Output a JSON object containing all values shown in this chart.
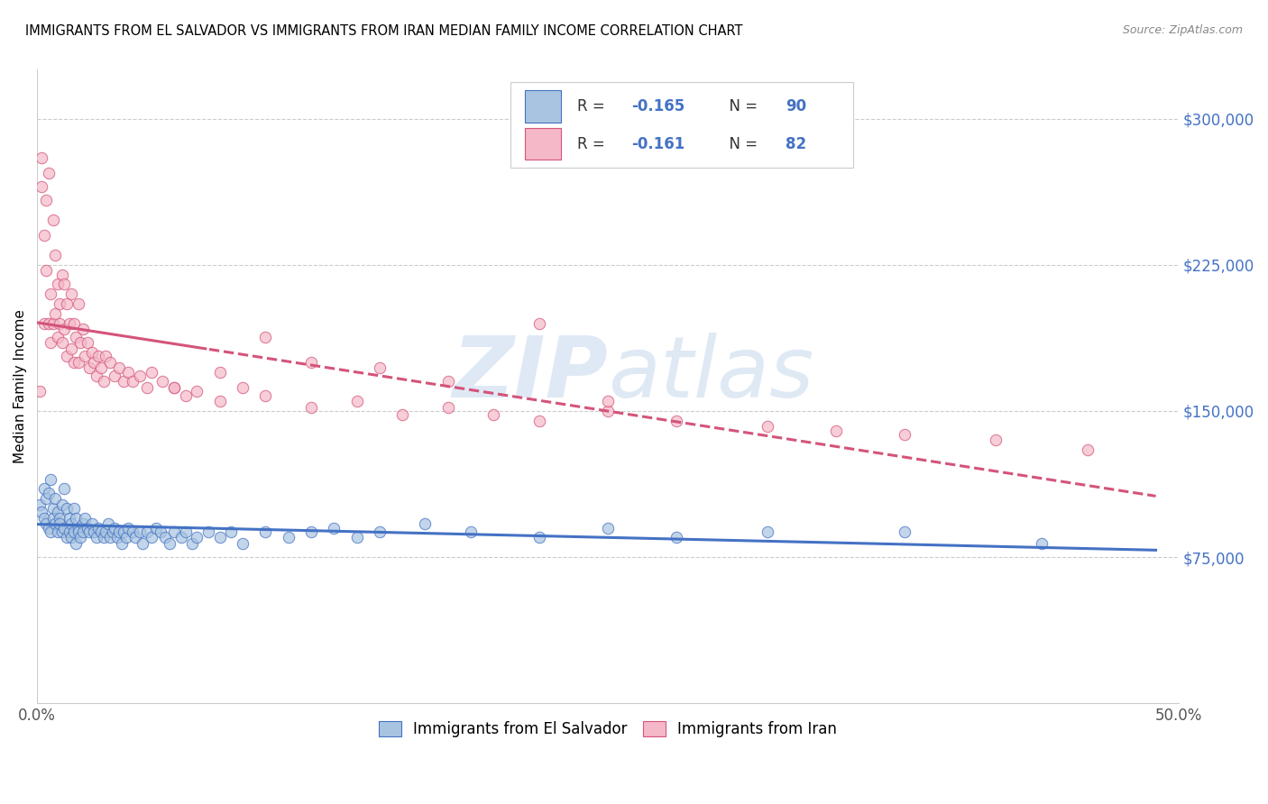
{
  "title": "IMMIGRANTS FROM EL SALVADOR VS IMMIGRANTS FROM IRAN MEDIAN FAMILY INCOME CORRELATION CHART",
  "source": "Source: ZipAtlas.com",
  "ylabel": "Median Family Income",
  "xlim": [
    0.0,
    0.5
  ],
  "ylim": [
    0,
    325000
  ],
  "yticks": [
    75000,
    150000,
    225000,
    300000
  ],
  "ytick_labels": [
    "$75,000",
    "$150,000",
    "$225,000",
    "$300,000"
  ],
  "watermark_zip": "ZIP",
  "watermark_atlas": "atlas",
  "legend_label1": "Immigrants from El Salvador",
  "legend_label2": "Immigrants from Iran",
  "color_salvador": "#a8c4e0",
  "color_iran": "#f4b8c8",
  "line_color_salvador": "#4472c4",
  "line_color_iran": "#d4547a",
  "scatter_alpha": 0.7,
  "scatter_size": 80,
  "legend_text_color": "#4472c4",
  "el_salvador_x": [
    0.001,
    0.002,
    0.003,
    0.003,
    0.004,
    0.004,
    0.005,
    0.005,
    0.006,
    0.006,
    0.007,
    0.007,
    0.008,
    0.008,
    0.009,
    0.009,
    0.01,
    0.01,
    0.011,
    0.011,
    0.012,
    0.012,
    0.013,
    0.013,
    0.014,
    0.014,
    0.015,
    0.015,
    0.016,
    0.016,
    0.017,
    0.017,
    0.018,
    0.018,
    0.019,
    0.02,
    0.02,
    0.021,
    0.022,
    0.023,
    0.024,
    0.025,
    0.026,
    0.027,
    0.028,
    0.029,
    0.03,
    0.031,
    0.032,
    0.033,
    0.034,
    0.035,
    0.036,
    0.037,
    0.038,
    0.039,
    0.04,
    0.042,
    0.043,
    0.045,
    0.046,
    0.048,
    0.05,
    0.052,
    0.054,
    0.056,
    0.058,
    0.06,
    0.063,
    0.065,
    0.068,
    0.07,
    0.075,
    0.08,
    0.085,
    0.09,
    0.1,
    0.11,
    0.12,
    0.13,
    0.14,
    0.15,
    0.17,
    0.19,
    0.22,
    0.25,
    0.28,
    0.32,
    0.38,
    0.44
  ],
  "el_salvador_y": [
    102000,
    98000,
    110000,
    95000,
    105000,
    92000,
    108000,
    90000,
    115000,
    88000,
    100000,
    95000,
    105000,
    92000,
    98000,
    88000,
    95000,
    92000,
    102000,
    88000,
    110000,
    90000,
    100000,
    85000,
    95000,
    88000,
    92000,
    85000,
    100000,
    88000,
    95000,
    82000,
    90000,
    88000,
    85000,
    92000,
    88000,
    95000,
    90000,
    88000,
    92000,
    88000,
    85000,
    90000,
    88000,
    85000,
    88000,
    92000,
    85000,
    88000,
    90000,
    85000,
    88000,
    82000,
    88000,
    85000,
    90000,
    88000,
    85000,
    88000,
    82000,
    88000,
    85000,
    90000,
    88000,
    85000,
    82000,
    88000,
    85000,
    88000,
    82000,
    85000,
    88000,
    85000,
    88000,
    82000,
    88000,
    85000,
    88000,
    90000,
    85000,
    88000,
    92000,
    88000,
    85000,
    90000,
    85000,
    88000,
    88000,
    82000
  ],
  "iran_x": [
    0.001,
    0.002,
    0.002,
    0.003,
    0.003,
    0.004,
    0.004,
    0.005,
    0.005,
    0.006,
    0.006,
    0.007,
    0.007,
    0.008,
    0.008,
    0.009,
    0.009,
    0.01,
    0.01,
    0.011,
    0.011,
    0.012,
    0.012,
    0.013,
    0.013,
    0.014,
    0.015,
    0.015,
    0.016,
    0.016,
    0.017,
    0.018,
    0.018,
    0.019,
    0.02,
    0.021,
    0.022,
    0.023,
    0.024,
    0.025,
    0.026,
    0.027,
    0.028,
    0.029,
    0.03,
    0.032,
    0.034,
    0.036,
    0.038,
    0.04,
    0.042,
    0.045,
    0.048,
    0.05,
    0.055,
    0.06,
    0.065,
    0.07,
    0.08,
    0.09,
    0.1,
    0.12,
    0.14,
    0.16,
    0.18,
    0.2,
    0.22,
    0.25,
    0.28,
    0.32,
    0.35,
    0.38,
    0.42,
    0.46,
    0.22,
    0.15,
    0.1,
    0.18,
    0.25,
    0.12,
    0.08,
    0.06
  ],
  "iran_y": [
    160000,
    280000,
    265000,
    240000,
    195000,
    258000,
    222000,
    272000,
    195000,
    210000,
    185000,
    248000,
    195000,
    230000,
    200000,
    215000,
    188000,
    205000,
    195000,
    220000,
    185000,
    215000,
    192000,
    205000,
    178000,
    195000,
    210000,
    182000,
    195000,
    175000,
    188000,
    205000,
    175000,
    185000,
    192000,
    178000,
    185000,
    172000,
    180000,
    175000,
    168000,
    178000,
    172000,
    165000,
    178000,
    175000,
    168000,
    172000,
    165000,
    170000,
    165000,
    168000,
    162000,
    170000,
    165000,
    162000,
    158000,
    160000,
    155000,
    162000,
    158000,
    152000,
    155000,
    148000,
    152000,
    148000,
    145000,
    150000,
    145000,
    142000,
    140000,
    138000,
    135000,
    130000,
    195000,
    172000,
    188000,
    165000,
    155000,
    175000,
    170000,
    162000
  ]
}
